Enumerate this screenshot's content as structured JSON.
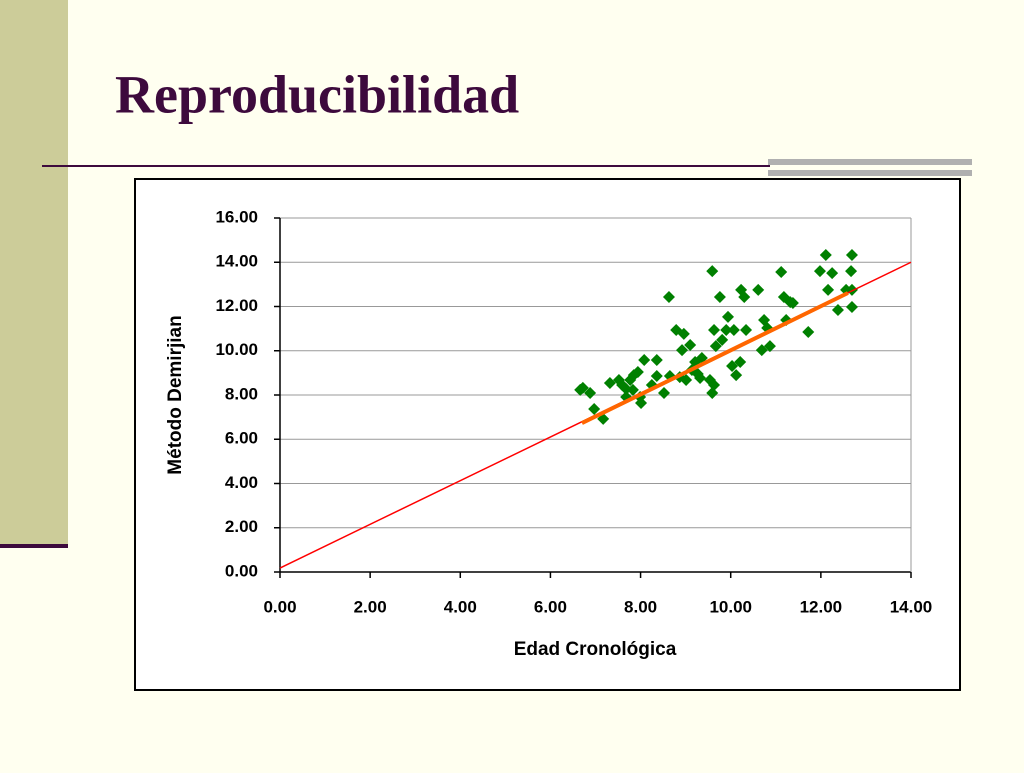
{
  "title": "Reproducibilidad",
  "chart_data": {
    "type": "scatter",
    "xlabel": "Edad Cronológica",
    "ylabel": "Método Demirjian",
    "xlim": [
      0,
      14
    ],
    "ylim": [
      0,
      16
    ],
    "xticks": [
      {
        "value": 0,
        "label": "0.00"
      },
      {
        "value": 2,
        "label": "2.00"
      },
      {
        "value": 4,
        "label": "4.00"
      },
      {
        "value": 6,
        "label": "6.00"
      },
      {
        "value": 8,
        "label": "8.00"
      },
      {
        "value": 10,
        "label": "10.00"
      },
      {
        "value": 12,
        "label": "12.00"
      },
      {
        "value": 14,
        "label": "14.00"
      }
    ],
    "yticks": [
      {
        "value": 0,
        "label": "0.00"
      },
      {
        "value": 2,
        "label": "2.00"
      },
      {
        "value": 4,
        "label": "4.00"
      },
      {
        "value": 6,
        "label": "6.00"
      },
      {
        "value": 8,
        "label": "8.00"
      },
      {
        "value": 10,
        "label": "10.00"
      },
      {
        "value": 12,
        "label": "12.00"
      },
      {
        "value": 14,
        "label": "14.00"
      },
      {
        "value": 16,
        "label": "16.00"
      }
    ],
    "grid": true,
    "x": [
      6.72,
      6.88,
      6.97,
      7.17,
      7.52,
      7.59,
      7.68,
      7.77,
      7.85,
      7.94,
      7.83,
      8.01,
      8.08,
      8.36,
      8.25,
      8.36,
      8.52,
      8.63,
      8.65,
      8.79,
      8.87,
      8.92,
      8.96,
      9.01,
      9.1,
      9.14,
      9.21,
      9.27,
      9.36,
      9.59,
      9.59,
      9.63,
      9.63,
      9.67,
      9.76,
      9.81,
      9.9,
      9.94,
      10.03,
      10.07,
      10.12,
      10.21,
      10.23,
      10.3,
      10.34,
      10.61,
      10.69,
      10.74,
      10.81,
      10.87,
      11.12,
      11.18,
      11.23,
      11.32,
      11.38,
      11.72,
      11.98,
      12.11,
      12.16,
      12.25,
      12.38,
      12.56,
      12.69,
      12.67,
      12.69,
      12.69,
      7.32,
      7.68,
      9.32,
      9.54,
      7.99,
      6.66
    ],
    "series": [
      {
        "color": "#008000",
        "values": [
          8.32,
          8.09,
          7.37,
          6.92,
          8.68,
          8.45,
          8.27,
          8.68,
          8.9,
          9.04,
          8.23,
          7.64,
          9.58,
          9.58,
          8.45,
          8.86,
          8.09,
          12.43,
          8.86,
          10.94,
          8.81,
          10.03,
          10.76,
          8.68,
          10.26,
          9.13,
          9.49,
          8.95,
          9.67,
          13.6,
          8.09,
          10.94,
          8.45,
          10.21,
          12.43,
          10.49,
          10.94,
          11.53,
          9.31,
          10.94,
          8.9,
          9.49,
          12.75,
          12.43,
          10.94,
          12.75,
          10.03,
          11.39,
          11.03,
          10.21,
          13.56,
          12.43,
          11.39,
          12.2,
          12.16,
          10.85,
          13.6,
          14.33,
          12.75,
          13.51,
          11.84,
          12.75,
          14.33,
          13.6,
          11.98,
          12.75,
          8.54,
          7.91,
          8.77,
          8.68,
          7.91,
          8.23
        ]
      }
    ],
    "lines": [
      {
        "color": "#ff0000",
        "x": [
          0,
          14
        ],
        "values": [
          0.18,
          14
        ]
      },
      {
        "color": "#ff6600",
        "x": [
          6.7,
          12.6
        ],
        "values": [
          6.73,
          12.61
        ]
      }
    ]
  }
}
